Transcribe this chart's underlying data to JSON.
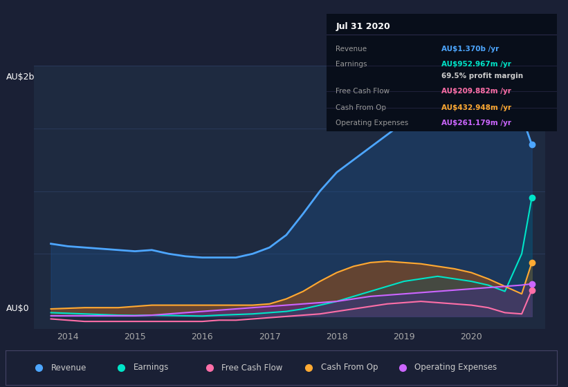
{
  "background_color": "#1a2035",
  "plot_bg_color": "#1e2a40",
  "title_box": {
    "date": "Jul 31 2020",
    "rows": [
      {
        "label": "Revenue",
        "value": "AU$1.370b /yr",
        "color": "#4da6ff"
      },
      {
        "label": "Earnings",
        "value": "AU$952.967m /yr",
        "color": "#00e5c8"
      },
      {
        "label": "",
        "value": "69.5% profit margin",
        "color": "#cccccc"
      },
      {
        "label": "Free Cash Flow",
        "value": "AU$209.882m /yr",
        "color": "#ff6fa8"
      },
      {
        "label": "Cash From Op",
        "value": "AU$432.948m /yr",
        "color": "#ffaa33"
      },
      {
        "label": "Operating Expenses",
        "value": "AU$261.179m /yr",
        "color": "#cc66ff"
      }
    ]
  },
  "ylabel_top": "AU$2b",
  "ylabel_bottom": "AU$0",
  "series": {
    "revenue": {
      "color": "#4da6ff",
      "label": "Revenue"
    },
    "earnings": {
      "color": "#00e5c8",
      "label": "Earnings"
    },
    "free_cash_flow": {
      "color": "#ff6fa8",
      "label": "Free Cash Flow"
    },
    "cash_from_op": {
      "color": "#ffaa33",
      "label": "Cash From Op"
    },
    "operating_expenses": {
      "color": "#cc66ff",
      "label": "Operating Expenses"
    }
  },
  "x": [
    2013.75,
    2014.0,
    2014.25,
    2014.5,
    2014.75,
    2015.0,
    2015.25,
    2015.5,
    2015.75,
    2016.0,
    2016.25,
    2016.5,
    2016.75,
    2017.0,
    2017.25,
    2017.5,
    2017.75,
    2018.0,
    2018.25,
    2018.5,
    2018.75,
    2019.0,
    2019.25,
    2019.5,
    2019.75,
    2020.0,
    2020.25,
    2020.5,
    2020.75,
    2020.9
  ],
  "revenue": [
    0.58,
    0.56,
    0.55,
    0.54,
    0.53,
    0.52,
    0.53,
    0.5,
    0.48,
    0.47,
    0.47,
    0.47,
    0.5,
    0.55,
    0.65,
    0.82,
    1.0,
    1.15,
    1.25,
    1.35,
    1.45,
    1.55,
    1.65,
    1.72,
    1.78,
    1.82,
    1.84,
    1.8,
    1.6,
    1.37
  ],
  "earnings": [
    0.03,
    0.025,
    0.02,
    0.015,
    0.01,
    0.008,
    0.01,
    0.008,
    0.005,
    0.003,
    0.01,
    0.015,
    0.02,
    0.03,
    0.04,
    0.06,
    0.09,
    0.12,
    0.16,
    0.2,
    0.24,
    0.28,
    0.3,
    0.32,
    0.3,
    0.28,
    0.25,
    0.2,
    0.5,
    0.95
  ],
  "free_cash_flow": [
    -0.02,
    -0.03,
    -0.04,
    -0.04,
    -0.04,
    -0.04,
    -0.04,
    -0.04,
    -0.04,
    -0.04,
    -0.03,
    -0.03,
    -0.02,
    -0.01,
    0.0,
    0.01,
    0.02,
    0.04,
    0.06,
    0.08,
    0.1,
    0.11,
    0.12,
    0.11,
    0.1,
    0.09,
    0.07,
    0.03,
    0.02,
    0.21
  ],
  "cash_from_op": [
    0.06,
    0.065,
    0.07,
    0.07,
    0.07,
    0.08,
    0.09,
    0.09,
    0.09,
    0.09,
    0.09,
    0.09,
    0.09,
    0.1,
    0.14,
    0.2,
    0.28,
    0.35,
    0.4,
    0.43,
    0.44,
    0.43,
    0.42,
    0.4,
    0.38,
    0.35,
    0.3,
    0.24,
    0.18,
    0.43
  ],
  "operating_expenses": [
    0.005,
    0.005,
    0.005,
    0.005,
    0.005,
    0.005,
    0.01,
    0.02,
    0.03,
    0.04,
    0.05,
    0.06,
    0.07,
    0.08,
    0.09,
    0.1,
    0.11,
    0.12,
    0.14,
    0.16,
    0.17,
    0.18,
    0.19,
    0.2,
    0.21,
    0.22,
    0.23,
    0.24,
    0.25,
    0.26
  ],
  "xlim": [
    2013.5,
    2021.1
  ],
  "ylim": [
    -0.1,
    2.0
  ],
  "xticks": [
    2014,
    2015,
    2016,
    2017,
    2018,
    2019,
    2020
  ],
  "grid_color": "#2a3a5a",
  "legend_items": [
    "Revenue",
    "Earnings",
    "Free Cash Flow",
    "Cash From Op",
    "Operating Expenses"
  ],
  "legend_colors": [
    "#4da6ff",
    "#00e5c8",
    "#ff6fa8",
    "#ffaa33",
    "#cc66ff"
  ]
}
